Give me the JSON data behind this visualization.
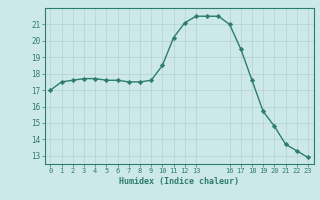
{
  "x": [
    0,
    1,
    2,
    3,
    4,
    5,
    6,
    7,
    8,
    9,
    10,
    11,
    12,
    13,
    14,
    15,
    16,
    17,
    18,
    19,
    20,
    21,
    22,
    23
  ],
  "y": [
    17.0,
    17.5,
    17.6,
    17.7,
    17.7,
    17.6,
    17.6,
    17.5,
    17.5,
    17.6,
    18.5,
    20.2,
    21.1,
    21.5,
    21.5,
    21.5,
    21.0,
    19.5,
    17.6,
    15.7,
    14.8,
    13.7,
    13.3,
    12.9
  ],
  "xlabel": "Humidex (Indice chaleur)",
  "ylim": [
    12.5,
    22.0
  ],
  "xlim": [
    -0.5,
    23.5
  ],
  "yticks": [
    13,
    14,
    15,
    16,
    17,
    18,
    19,
    20,
    21
  ],
  "xticks": [
    0,
    1,
    2,
    3,
    4,
    5,
    6,
    7,
    8,
    9,
    10,
    11,
    12,
    13,
    16,
    17,
    18,
    19,
    20,
    21,
    22,
    23
  ],
  "line_color": "#2d7d6d",
  "bg_color": "#cce8e8",
  "grid_color": "#b8d4d4"
}
